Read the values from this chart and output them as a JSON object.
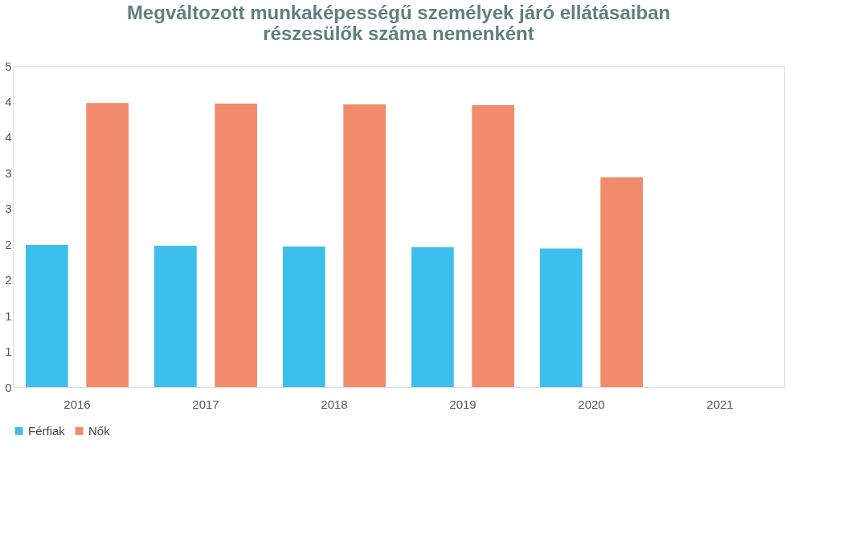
{
  "chart_data": {
    "type": "bar",
    "title": [
      "Megváltozott munkaképességű személyek járó ellátásaiban",
      "részesülők száma nemenként"
    ],
    "categories": [
      "2016",
      "2017",
      "2018",
      "2019",
      "2020",
      "2021"
    ],
    "series": [
      {
        "name": "Férfiak",
        "color": "#3dbfee",
        "values": [
          1.99,
          1.98,
          1.97,
          1.96,
          1.94,
          null
        ]
      },
      {
        "name": "Nők",
        "color": "#f28b6c",
        "values": [
          3.98,
          3.97,
          3.96,
          3.95,
          2.94,
          null
        ]
      }
    ],
    "ylim": [
      0,
      4.5
    ],
    "yticks": [
      0,
      {
        "value": 0.5,
        "label": "1"
      },
      {
        "value": 1,
        "label": "1"
      },
      {
        "value": 1.5,
        "label": "2"
      },
      {
        "value": 2,
        "label": "2"
      },
      {
        "value": 2.5,
        "label": "3"
      },
      {
        "value": 3,
        "label": "3"
      },
      {
        "value": 3.5,
        "label": "4"
      },
      {
        "value": 4,
        "label": "4"
      },
      {
        "value": 4.5,
        "label": "5"
      }
    ],
    "grid": false,
    "legend": "bottom"
  }
}
